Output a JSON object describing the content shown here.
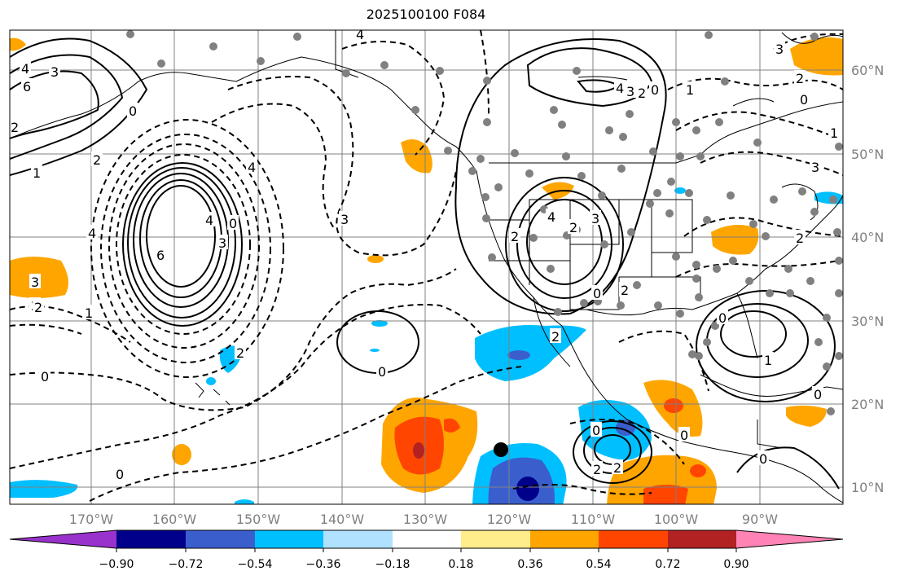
{
  "title": "2025100100 F084",
  "map": {
    "lon_ticks": [
      "170°W",
      "160°W",
      "150°W",
      "140°W",
      "130°W",
      "120°W",
      "110°W",
      "100°W",
      "90°W"
    ],
    "lat_ticks": [
      "60°N",
      "50°N",
      "40°N",
      "30°N",
      "20°N",
      "10°N"
    ],
    "contour_labels": [
      "4",
      "3",
      "6",
      "0",
      "2",
      "1",
      "2",
      "4",
      "6",
      "4",
      "3",
      "0",
      "3",
      "2",
      "1",
      "0",
      "4",
      "3",
      "2",
      "1",
      "0",
      "0",
      "3",
      "2",
      "1",
      "0",
      "2",
      "2",
      "2",
      "0",
      "0",
      "2",
      "2"
    ],
    "colors": {
      "contour": "#000000",
      "grid": "#808080",
      "station": "#808080",
      "marker": "#000000"
    }
  },
  "colorbar": {
    "ticks": [
      "−0.90",
      "−0.72",
      "−0.54",
      "−0.36",
      "−0.18",
      "0.18",
      "0.36",
      "0.54",
      "0.72",
      "0.90"
    ],
    "colors": [
      "#9932cc",
      "#00008b",
      "#3a5fcd",
      "#00bfff",
      "#b0e2ff",
      "#ffffff",
      "#ffec8b",
      "#ffa500",
      "#ff4500",
      "#b22222",
      "#ff83b4"
    ]
  }
}
